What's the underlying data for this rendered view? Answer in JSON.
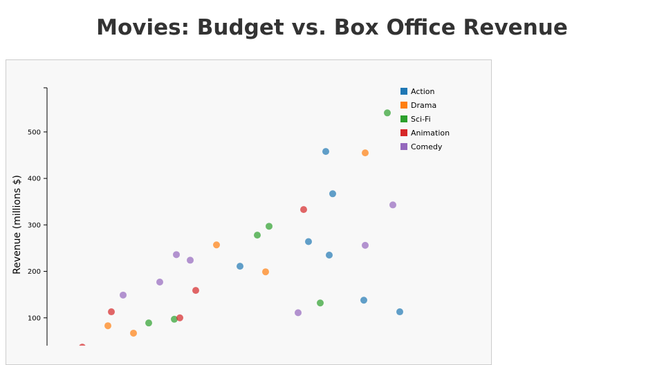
{
  "chart_data": {
    "type": "scatter",
    "title": "Movies: Budget vs. Box Office Revenue",
    "xlabel": "",
    "ylabel": "Revenue (millions $)",
    "xlim": [
      0,
      310
    ],
    "ylim": [
      0,
      595
    ],
    "yticks": [
      100,
      200,
      300,
      400,
      500
    ],
    "legend_position": "top-right",
    "series": [
      {
        "name": "Action",
        "color": "#1f77b4",
        "points": [
          [
            201.5,
            458
          ],
          [
            206.5,
            367
          ],
          [
            189,
            264
          ],
          [
            204,
            235
          ],
          [
            139.5,
            211
          ],
          [
            229,
            138
          ],
          [
            255,
            113
          ]
        ]
      },
      {
        "name": "Drama",
        "color": "#ff7f0e",
        "points": [
          [
            230,
            455
          ],
          [
            122.5,
            257
          ],
          [
            158,
            199
          ],
          [
            44,
            83
          ],
          [
            62.5,
            67
          ]
        ]
      },
      {
        "name": "Sci-Fi",
        "color": "#2ca02c",
        "points": [
          [
            246,
            541
          ],
          [
            160.5,
            297
          ],
          [
            152,
            278
          ],
          [
            197.5,
            132
          ],
          [
            73.5,
            89
          ],
          [
            92,
            97
          ]
        ]
      },
      {
        "name": "Animation",
        "color": "#d62728",
        "points": [
          [
            185.5,
            333
          ],
          [
            107.5,
            159
          ],
          [
            46.5,
            113
          ],
          [
            96,
            100
          ],
          [
            25.5,
            37
          ]
        ]
      },
      {
        "name": "Comedy",
        "color": "#9467bd",
        "points": [
          [
            250,
            343
          ],
          [
            230,
            256
          ],
          [
            93.5,
            236
          ],
          [
            103.5,
            224
          ],
          [
            81.5,
            177
          ],
          [
            55,
            149
          ],
          [
            181.5,
            111
          ]
        ]
      }
    ]
  }
}
